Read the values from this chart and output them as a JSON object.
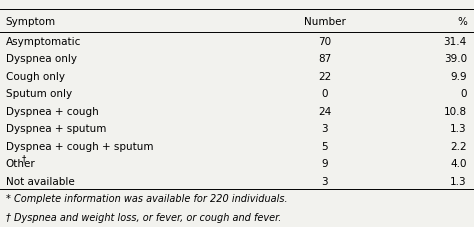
{
  "col_headers": [
    "Symptom",
    "Number",
    "%"
  ],
  "rows": [
    [
      "Asymptomatic",
      "70",
      "31.4"
    ],
    [
      "Dyspnea only",
      "87",
      "39.0"
    ],
    [
      "Cough only",
      "22",
      "9.9"
    ],
    [
      "Sputum only",
      "0",
      "0"
    ],
    [
      "Dyspnea + cough",
      "24",
      "10.8"
    ],
    [
      "Dyspnea + sputum",
      "3",
      "1.3"
    ],
    [
      "Dyspnea + cough + sputum",
      "5",
      "2.2"
    ],
    [
      "Other†",
      "9",
      "4.0"
    ],
    [
      "Not available",
      "3",
      "1.3"
    ]
  ],
  "footnotes": [
    "* Complete information was available for 220 individuals.",
    "† Dyspnea and weight loss, or fever, or cough and fever."
  ],
  "bg_color": "#f2f2ee",
  "font_size": 7.5,
  "header_font_size": 7.5,
  "footnote_font_size": 7.0
}
